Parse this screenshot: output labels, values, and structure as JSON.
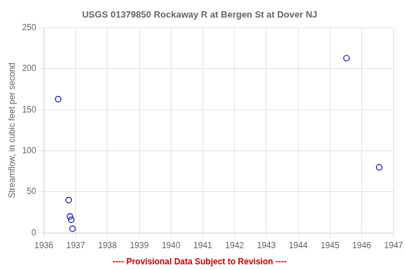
{
  "chart_data": {
    "type": "scatter",
    "title": "USGS 01379850 Rockaway R at Bergen St at Dover NJ",
    "ylabel": "Streamflow, in cubic feet per second",
    "x": [
      1936.45,
      1936.78,
      1936.82,
      1936.86,
      1936.9,
      1945.52,
      1946.55
    ],
    "values": [
      163,
      40,
      20,
      16,
      5,
      213,
      80
    ],
    "color": "#0000cc",
    "marker": "open circle",
    "xlim": [
      1936,
      1947
    ],
    "ylim": [
      0,
      250
    ],
    "xticks": [
      1936,
      1937,
      1938,
      1939,
      1940,
      1941,
      1942,
      1943,
      1944,
      1945,
      1946,
      1947
    ],
    "yticks": [
      0,
      50,
      100,
      150,
      200,
      250
    ],
    "grid": true,
    "annotations": [
      {
        "text": "---- Provisional Data Subject to Revision ----",
        "color": "#cc0000"
      }
    ]
  }
}
